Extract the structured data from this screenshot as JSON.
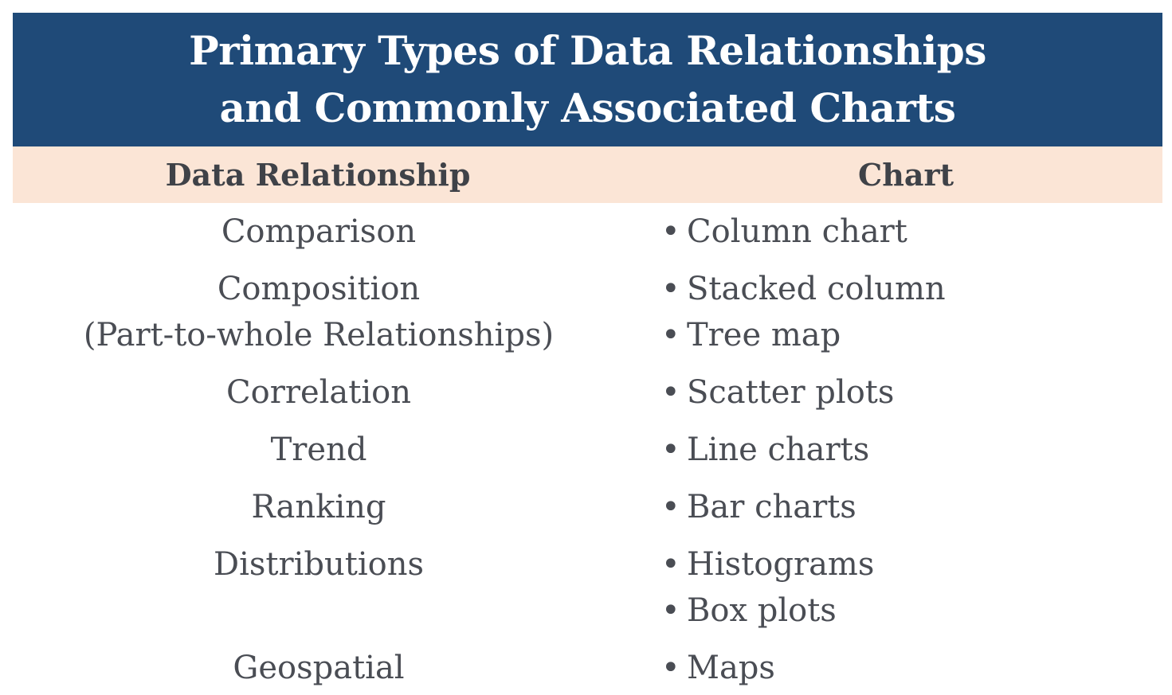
{
  "title": {
    "line1": "Primary Types of Data Relationships",
    "line2": "and Commonly Associated Charts"
  },
  "columns": {
    "left": "Data Relationship",
    "right": "Chart"
  },
  "bullet": "•",
  "rows": [
    {
      "relationship": [
        "Comparison"
      ],
      "charts": [
        "Column chart"
      ]
    },
    {
      "relationship": [
        "Composition",
        "(Part-to-whole Relationships)"
      ],
      "charts": [
        "Stacked column",
        "Tree map"
      ]
    },
    {
      "relationship": [
        "Correlation"
      ],
      "charts": [
        "Scatter plots"
      ]
    },
    {
      "relationship": [
        "Trend"
      ],
      "charts": [
        "Line charts"
      ]
    },
    {
      "relationship": [
        "Ranking"
      ],
      "charts": [
        "Bar charts"
      ]
    },
    {
      "relationship": [
        "Distributions"
      ],
      "charts": [
        "Histograms",
        "Box plots"
      ]
    },
    {
      "relationship": [
        "Geospatial"
      ],
      "charts": [
        "Maps"
      ]
    }
  ],
  "colors": {
    "title_bg": "#1f4a78",
    "header_bg": "#fbe5d6",
    "text": "#4a4d54"
  }
}
